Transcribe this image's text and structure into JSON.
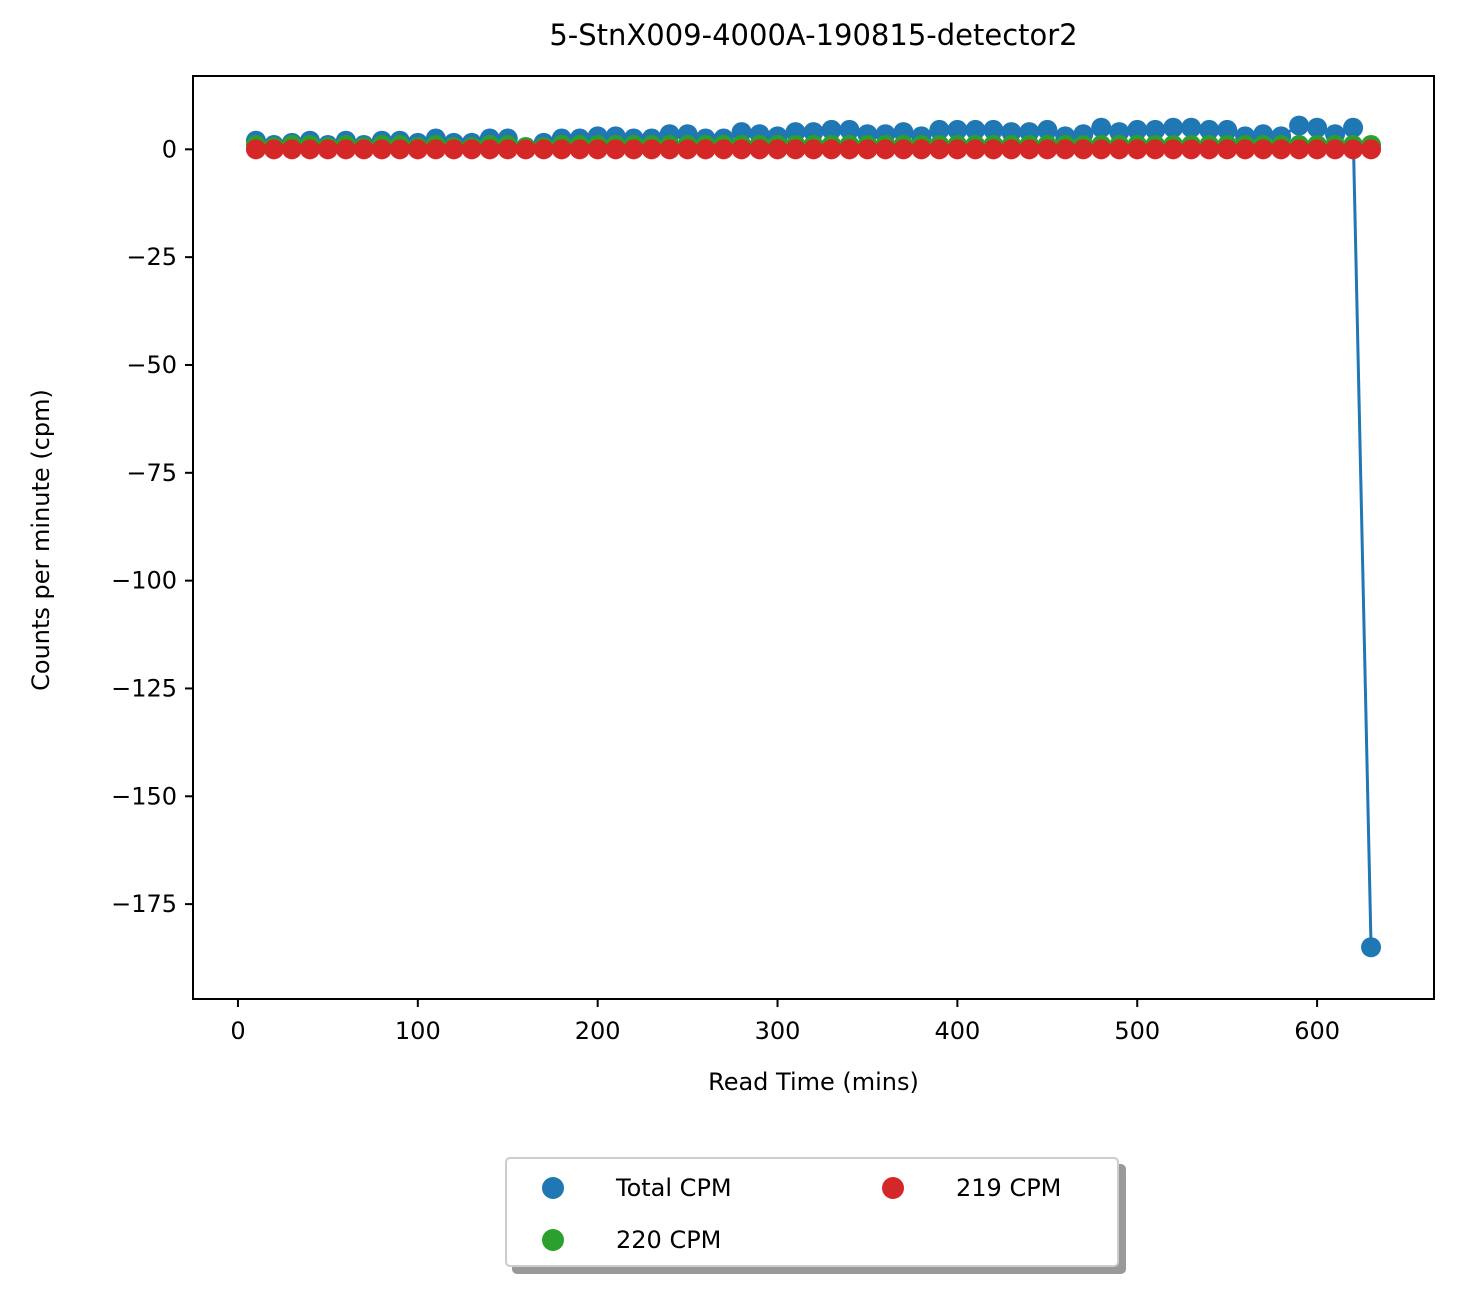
{
  "chart_data": {
    "type": "scatter",
    "title": "5-StnX009-4000A-190815-detector2",
    "xlabel": "Read Time (mins)",
    "ylabel": "Counts per minute (cpm)",
    "xlim": [
      -25,
      665
    ],
    "ylim": [
      -197,
      17
    ],
    "xticks": [
      0,
      100,
      200,
      300,
      400,
      500,
      600
    ],
    "yticks": [
      0,
      -25,
      -50,
      -75,
      -100,
      -125,
      -150,
      -175
    ],
    "xtick_labels": [
      "0",
      "100",
      "200",
      "300",
      "400",
      "500",
      "600"
    ],
    "ytick_labels": [
      "0",
      "−25",
      "−50",
      "−75",
      "−100",
      "−125",
      "−150",
      "−175"
    ],
    "x": [
      10,
      20,
      30,
      40,
      50,
      60,
      70,
      80,
      90,
      100,
      110,
      120,
      130,
      140,
      150,
      160,
      170,
      180,
      190,
      200,
      210,
      220,
      230,
      240,
      250,
      260,
      270,
      280,
      290,
      300,
      310,
      320,
      330,
      340,
      350,
      360,
      370,
      380,
      390,
      400,
      410,
      420,
      430,
      440,
      450,
      460,
      470,
      480,
      490,
      500,
      510,
      520,
      530,
      540,
      550,
      560,
      570,
      580,
      590,
      600,
      610,
      620,
      630
    ],
    "series": [
      {
        "name": "Total CPM",
        "color": "#1f77b4",
        "line": true,
        "values": [
          2.0,
          1.0,
          1.5,
          2.0,
          1.0,
          2.0,
          1.0,
          2.0,
          2.0,
          1.5,
          2.5,
          1.5,
          1.5,
          2.5,
          2.5,
          0.5,
          1.5,
          2.5,
          2.5,
          3.0,
          3.0,
          2.5,
          2.5,
          3.5,
          3.5,
          2.5,
          2.5,
          4.0,
          3.5,
          3.0,
          4.0,
          4.0,
          4.5,
          4.5,
          3.5,
          3.5,
          4.0,
          3.0,
          4.5,
          4.5,
          4.5,
          4.5,
          4.0,
          4.0,
          4.5,
          3.0,
          3.5,
          5.0,
          4.0,
          4.5,
          4.5,
          5.0,
          5.0,
          4.5,
          4.5,
          3.0,
          3.5,
          3.0,
          5.5,
          5.0,
          3.5,
          5.0,
          -185.0
        ]
      },
      {
        "name": "220 CPM",
        "color": "#2ca02c",
        "line": false,
        "values": [
          1.0,
          0.5,
          1.0,
          1.0,
          0.5,
          1.0,
          0.5,
          1.0,
          1.0,
          0.5,
          1.0,
          0.5,
          0.5,
          1.0,
          1.0,
          0.5,
          0.5,
          1.0,
          1.0,
          1.0,
          1.0,
          1.0,
          1.0,
          1.0,
          1.0,
          1.0,
          1.0,
          1.0,
          1.0,
          1.0,
          1.0,
          1.0,
          1.0,
          1.0,
          1.0,
          1.0,
          1.0,
          1.0,
          1.0,
          1.0,
          1.0,
          1.0,
          1.0,
          1.0,
          1.0,
          1.0,
          1.0,
          1.0,
          1.0,
          1.0,
          1.0,
          1.0,
          1.0,
          1.0,
          1.0,
          1.0,
          1.0,
          1.0,
          1.0,
          1.0,
          1.0,
          1.0,
          1.0
        ]
      },
      {
        "name": "219 CPM",
        "color": "#d62728",
        "line": false,
        "values": [
          0,
          0,
          0,
          0,
          0,
          0,
          0,
          0,
          0,
          0,
          0,
          0,
          0,
          0,
          0,
          0,
          0,
          0,
          0,
          0,
          0,
          0,
          0,
          0,
          0,
          0,
          0,
          0,
          0,
          0,
          0,
          0,
          0,
          0,
          0,
          0,
          0,
          0,
          0,
          0,
          0,
          0,
          0,
          0,
          0,
          0,
          0,
          0,
          0,
          0,
          0,
          0,
          0,
          0,
          0,
          0,
          0,
          0,
          0,
          0,
          0,
          0,
          0
        ]
      }
    ],
    "legend": {
      "position": "below",
      "columns": 2
    },
    "grid": false
  }
}
